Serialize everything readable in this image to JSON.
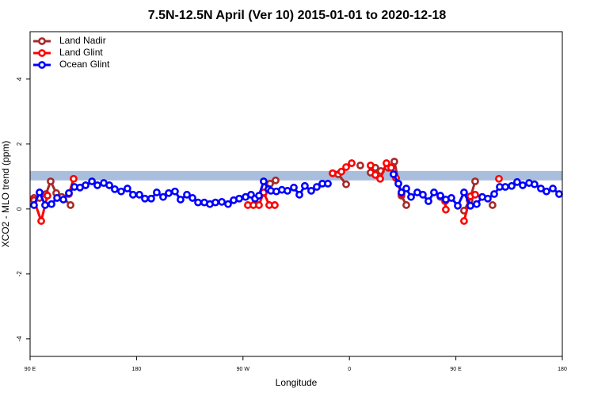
{
  "chart_data": {
    "type": "line",
    "title": "7.5N-12.5N April (Ver 10)   2015-01-01 to 2020-12-18",
    "x_label": "Longitude",
    "y_label": "XCO2 - MLO trend (ppm)",
    "xlim": [
      90,
      540
    ],
    "xticks": [
      {
        "value": 90,
        "label": "90 E"
      },
      180,
      {
        "value": 270,
        "label": "90 W"
      },
      {
        "value": 360,
        "label": "0"
      },
      {
        "value": 450,
        "label": "90 E"
      },
      {
        "value": 540,
        "label": "180"
      }
    ],
    "ylim": [
      -4.54,
      5.46
    ],
    "yticks": [
      -4,
      -2,
      0,
      2,
      4
    ],
    "legend": "top-left",
    "reference_band": {
      "ylim": [
        0.88,
        1.17
      ],
      "color": "#a9bedc"
    },
    "series": [
      {
        "name": "Land Nadir",
        "color": "#a52a2a",
        "x": [
          93.3,
          98,
          103.4,
          107.4,
          112.1,
          116.8,
          124.2,
          null,
          287.5,
          292.9,
          297.6,
          null,
          345.8,
          350.5,
          357.2,
          null,
          369.2,
          null,
          377.9,
          381.9,
          386.6,
          392.7,
          398,
          404,
          408.1,
          null,
          436.9,
          441.5,
          null,
          456.9,
          461.6,
          466.3,
          null,
          481
        ],
        "values": [
          0.34,
          0.34,
          0.46,
          0.85,
          0.49,
          0.37,
          0.12,
          null,
          0.49,
          0.78,
          0.88,
          null,
          1.1,
          1.07,
          0.76,
          null,
          1.34,
          null,
          1.12,
          1.27,
          1.17,
          1.27,
          1.46,
          0.41,
          0.12,
          null,
          0.37,
          0.27,
          null,
          -0.05,
          0.27,
          0.85,
          null,
          0.12
        ]
      },
      {
        "name": "Land Glint",
        "color": "#ff0000",
        "x": [
          93.3,
          99.4,
          104.7,
          null,
          122.8,
          126.8,
          null,
          274.1,
          278.8,
          283.5,
          287.5,
          292.2,
          296.9,
          null,
          345.8,
          353.2,
          357.2,
          361.9,
          null,
          377.9,
          381.9,
          386,
          391.3,
          395.3,
          399.4,
          404,
          null,
          440.9,
          441.5,
          null,
          456.9,
          462.3,
          466.3,
          null,
          486.4
        ],
        "values": [
          0.27,
          -0.37,
          0.41,
          null,
          0.46,
          0.93,
          null,
          0.12,
          0.12,
          0.12,
          0.51,
          0.12,
          0.12,
          null,
          1.1,
          1.15,
          1.29,
          1.41,
          null,
          1.34,
          1.05,
          0.93,
          1.41,
          1.27,
          0.95,
          0.46,
          null,
          0.24,
          -0.02,
          null,
          -0.37,
          0.39,
          0.44,
          null,
          0.93
        ]
      },
      {
        "name": "Ocean Glint",
        "color": "#0000ff",
        "x": [
          93.3,
          98,
          102.7,
          108.1,
          112.8,
          118.1,
          122.8,
          127.5,
          132.2,
          136.9,
          142.3,
          146.9,
          152.3,
          157,
          161.6,
          167,
          172.3,
          177,
          182.4,
          187.1,
          192.4,
          197.1,
          202.5,
          207.2,
          212.5,
          217.2,
          222.6,
          227.3,
          232,
          237.3,
          242,
          246.7,
          252.1,
          257.4,
          262.1,
          266.8,
          272.2,
          276.8,
          280.2,
          283.5,
          287.5,
          291.5,
          293.6,
          298.2,
          302.9,
          307.6,
          313,
          317.7,
          322.3,
          327.7,
          332.4,
          337.1,
          341.8,
          null,
          397.3,
          401.4,
          404,
          408.1,
          412.1,
          417.4,
          422.1,
          426.8,
          431.5,
          436.9,
          441.5,
          446.2,
          451.6,
          456.9,
          462.3,
          467.6,
          472.3,
          477,
          482.4,
          487.1,
          491.8,
          497.2,
          501.8,
          506.5,
          511.9,
          516.5,
          521.9,
          526.6,
          532,
          537.3
        ],
        "values": [
          0.12,
          0.51,
          0.12,
          0.15,
          0.34,
          0.29,
          0.49,
          0.68,
          0.66,
          0.73,
          0.85,
          0.73,
          0.8,
          0.73,
          0.61,
          0.54,
          0.63,
          0.44,
          0.44,
          0.32,
          0.32,
          0.51,
          0.37,
          0.49,
          0.54,
          0.29,
          0.44,
          0.34,
          0.2,
          0.2,
          0.15,
          0.2,
          0.22,
          0.15,
          0.27,
          0.32,
          0.37,
          0.44,
          0.32,
          0.41,
          0.85,
          0.61,
          0.56,
          0.54,
          0.59,
          0.56,
          0.66,
          0.44,
          0.71,
          0.56,
          0.68,
          0.78,
          0.78,
          null,
          1.07,
          0.78,
          0.51,
          0.63,
          0.37,
          0.51,
          0.44,
          0.24,
          0.51,
          0.41,
          0.29,
          0.34,
          0.1,
          0.51,
          0.1,
          0.15,
          0.37,
          0.32,
          0.46,
          0.68,
          0.68,
          0.71,
          0.83,
          0.73,
          0.8,
          0.76,
          0.63,
          0.54,
          0.63,
          0.46
        ]
      }
    ]
  }
}
